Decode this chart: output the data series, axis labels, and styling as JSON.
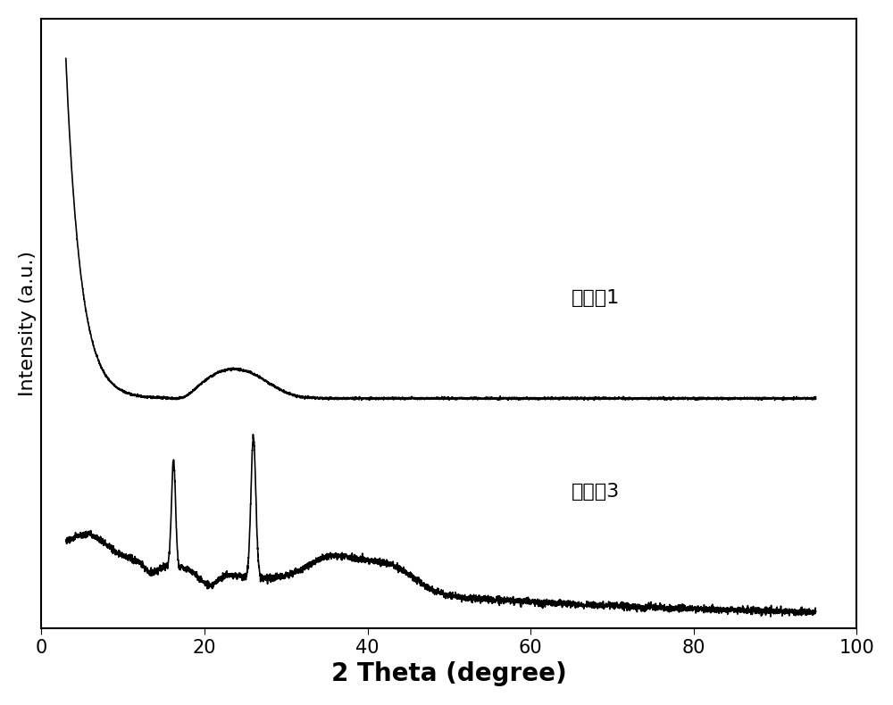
{
  "xlabel": "2 Theta (degree)",
  "ylabel": "Intensity (a.u.)",
  "xlim": [
    0,
    100
  ],
  "ylim": [
    -0.02,
    1.05
  ],
  "xticks": [
    0,
    20,
    40,
    60,
    80,
    100
  ],
  "label1": "实施例1",
  "label3": "实施例3",
  "line_color": "#000000",
  "bg_color": "#ffffff",
  "noise_seed1": 42,
  "noise_seed3": 77,
  "xlabel_fontsize": 20,
  "ylabel_fontsize": 16,
  "tick_fontsize": 15,
  "label_fontsize": 16
}
